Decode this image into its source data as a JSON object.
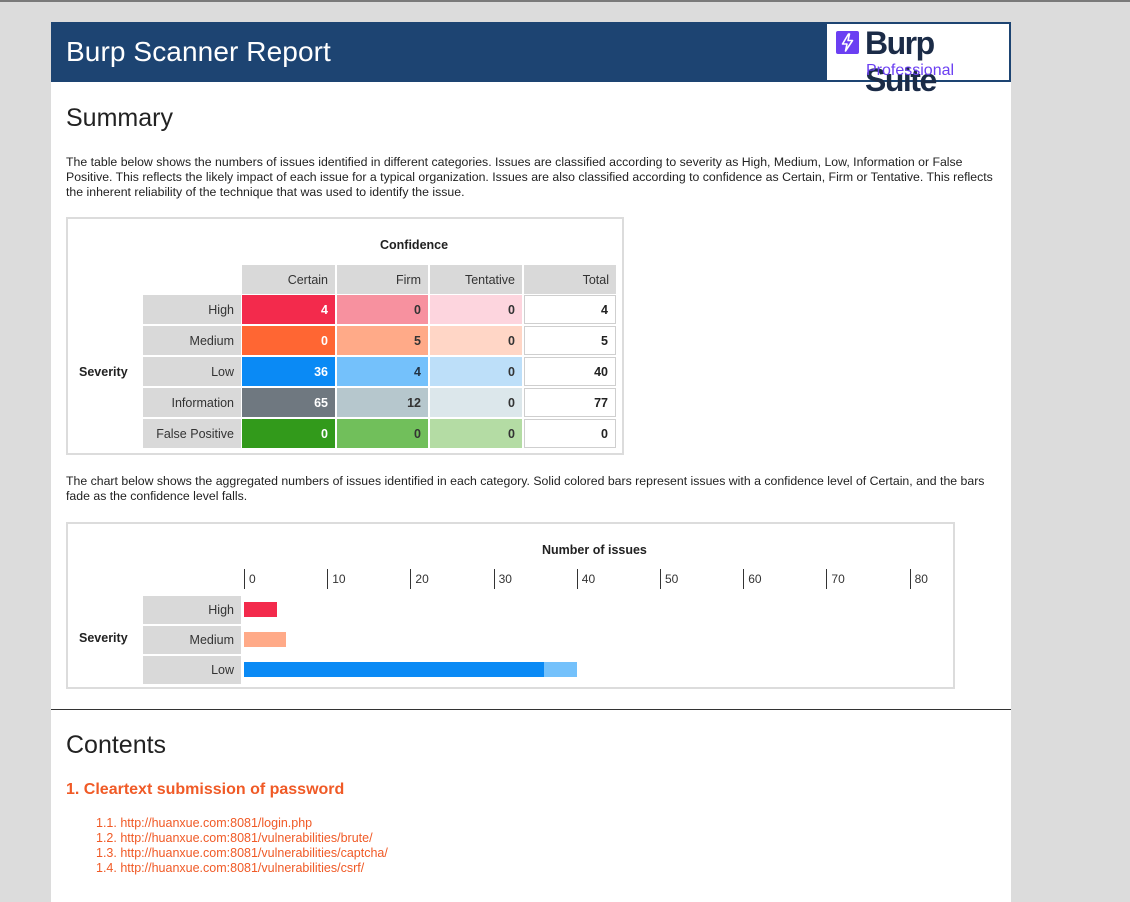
{
  "header": {
    "title": "Burp Scanner Report",
    "logo_brand": "Burp Suite",
    "logo_edition": "Professional"
  },
  "summary": {
    "heading": "Summary",
    "intro": "The table below shows the numbers of issues identified in different categories. Issues are classified according to severity as High, Medium, Low, Information or False Positive. This reflects the likely impact of each issue for a typical organization. Issues are also classified according to confidence as Certain, Firm or Tentative. This reflects the inherent reliability of the technique that was used to identify the issue.",
    "table": {
      "confidence_label": "Confidence",
      "severity_label": "Severity",
      "columns": [
        "Certain",
        "Firm",
        "Tentative",
        "Total"
      ],
      "rows": [
        {
          "label": "High",
          "values": [
            "4",
            "0",
            "0",
            "4"
          ]
        },
        {
          "label": "Medium",
          "values": [
            "0",
            "5",
            "0",
            "5"
          ]
        },
        {
          "label": "Low",
          "values": [
            "36",
            "4",
            "0",
            "40"
          ]
        },
        {
          "label": "Information",
          "values": [
            "65",
            "12",
            "0",
            "77"
          ]
        },
        {
          "label": "False Positive",
          "values": [
            "0",
            "0",
            "0",
            "0"
          ]
        }
      ]
    },
    "chart_intro": "The chart below shows the aggregated numbers of issues identified in each category. Solid colored bars represent issues with a confidence level of Certain, and the bars fade as the confidence level falls."
  },
  "colors": {
    "high": [
      "#f32a4c",
      "#f7919f",
      "#fdd5de"
    ],
    "medium": [
      "#ff6633",
      "#ffaa88",
      "#ffd6c6"
    ],
    "low": [
      "#0a8af5",
      "#74c1fb",
      "#bddff9"
    ],
    "information": [
      "#6f7880",
      "#b6c7cd",
      "#dce7eb"
    ],
    "false_positive": [
      "#329a1b",
      "#71bf5b",
      "#b4dca4"
    ]
  },
  "chart_data": {
    "type": "bar",
    "title": "Number of issues",
    "ylabel": "Severity",
    "categories": [
      "High",
      "Medium",
      "Low"
    ],
    "ticks": [
      0,
      10,
      20,
      30,
      40,
      50,
      60,
      70,
      80
    ],
    "xlim": [
      0,
      80
    ],
    "stacked": true,
    "series": [
      {
        "name": "Certain",
        "values": [
          4,
          0,
          36
        ]
      },
      {
        "name": "Firm",
        "values": [
          0,
          5,
          4
        ]
      },
      {
        "name": "Tentative",
        "values": [
          0,
          0,
          0
        ]
      }
    ]
  },
  "contents": {
    "heading": "Contents",
    "section_title": "1. Cleartext submission of password",
    "items": [
      "1.1. http://huanxue.com:8081/login.php",
      "1.2. http://huanxue.com:8081/vulnerabilities/brute/",
      "1.3. http://huanxue.com:8081/vulnerabilities/captcha/",
      "1.4. http://huanxue.com:8081/vulnerabilities/csrf/"
    ]
  }
}
